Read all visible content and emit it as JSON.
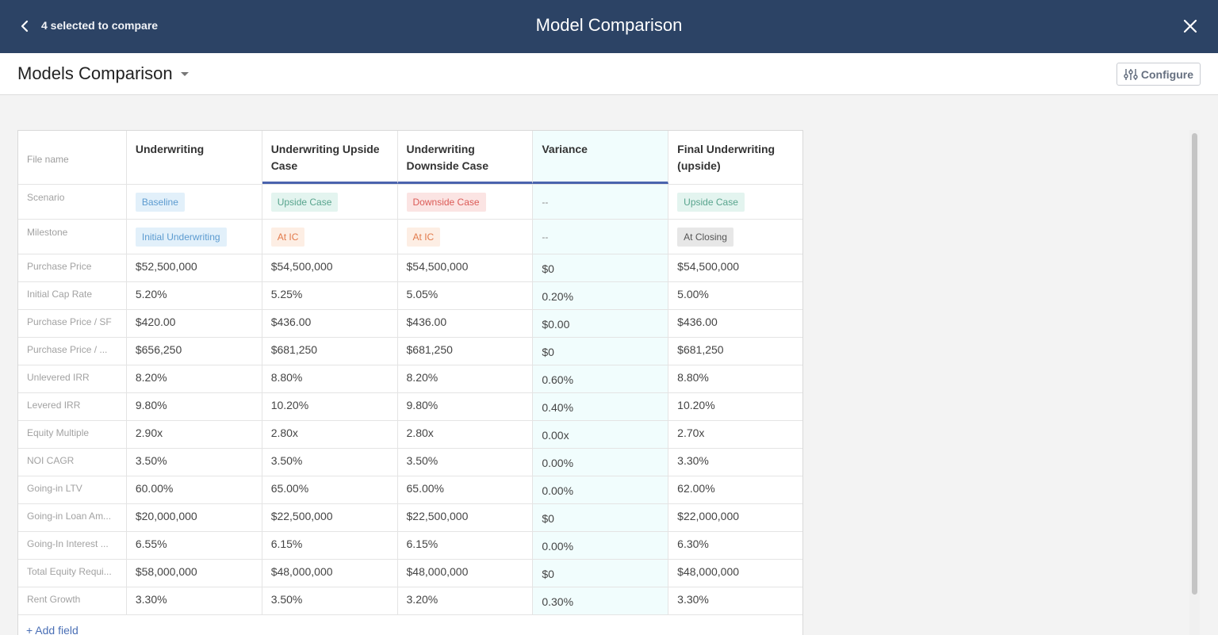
{
  "topbar": {
    "back_icon": "chevron-left-icon",
    "selected_text": "4 selected to compare",
    "title": "Model Comparison",
    "close_icon": "close-icon"
  },
  "subheader": {
    "title": "Models Comparison",
    "caret_icon": "caret-down-icon",
    "configure_label": "Configure",
    "configure_icon": "sliders-icon"
  },
  "table": {
    "label_header": "File name",
    "columns": [
      "Underwriting",
      "Underwriting Upside Case",
      "Underwriting Downside Case",
      "Variance",
      "Final Underwriting (upside)"
    ],
    "scenario": {
      "label": "Scenario",
      "values": [
        "Baseline",
        "Upside Case",
        "Downside Case",
        "--",
        "Upside Case"
      ]
    },
    "milestone": {
      "label": "Milestone",
      "values": [
        "Initial Underwriting",
        "At IC",
        "At IC",
        "--",
        "At Closing"
      ]
    },
    "rows": [
      {
        "label": "Purchase Price",
        "values": [
          "$52,500,000",
          "$54,500,000",
          "$54,500,000",
          "$0",
          "$54,500,000"
        ]
      },
      {
        "label": "Initial Cap Rate",
        "values": [
          "5.20%",
          "5.25%",
          "5.05%",
          "0.20%",
          "5.00%"
        ]
      },
      {
        "label": "Purchase Price / SF",
        "values": [
          "$420.00",
          "$436.00",
          "$436.00",
          "$0.00",
          "$436.00"
        ]
      },
      {
        "label": "Purchase Price / ...",
        "values": [
          "$656,250",
          "$681,250",
          "$681,250",
          "$0",
          "$681,250"
        ]
      },
      {
        "label": "Unlevered IRR",
        "values": [
          "8.20%",
          "8.80%",
          "8.20%",
          "0.60%",
          "8.80%"
        ]
      },
      {
        "label": "Levered IRR",
        "values": [
          "9.80%",
          "10.20%",
          "9.80%",
          "0.40%",
          "10.20%"
        ]
      },
      {
        "label": "Equity Multiple",
        "values": [
          "2.90x",
          "2.80x",
          "2.80x",
          "0.00x",
          "2.70x"
        ]
      },
      {
        "label": "NOI CAGR",
        "values": [
          "3.50%",
          "3.50%",
          "3.50%",
          "0.00%",
          "3.30%"
        ]
      },
      {
        "label": "Going-in LTV",
        "values": [
          "60.00%",
          "65.00%",
          "65.00%",
          "0.00%",
          "62.00%"
        ]
      },
      {
        "label": "Going-in Loan Am...",
        "values": [
          "$20,000,000",
          "$22,500,000",
          "$22,500,000",
          "$0",
          "$22,000,000"
        ]
      },
      {
        "label": "Going-In Interest ...",
        "values": [
          "6.55%",
          "6.15%",
          "6.15%",
          "0.00%",
          "6.30%"
        ]
      },
      {
        "label": "Total Equity Requi...",
        "values": [
          "$58,000,000",
          "$48,000,000",
          "$48,000,000",
          "$0",
          "$48,000,000"
        ]
      },
      {
        "label": "Rent Growth",
        "values": [
          "3.30%",
          "3.50%",
          "3.20%",
          "0.30%",
          "3.30%"
        ]
      }
    ]
  },
  "add_field_label": "+ Add field",
  "colors": {
    "topbar_bg": "#2c4365",
    "accent": "#4a63ad",
    "variance_bg": "#f1fdfd"
  }
}
